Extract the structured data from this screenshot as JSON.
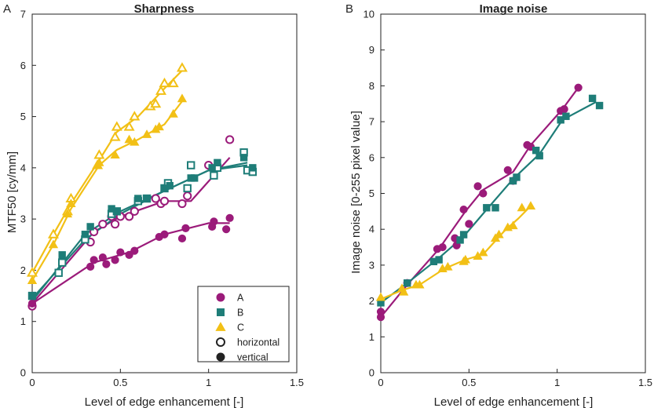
{
  "colors": {
    "A": "#9b1b7a",
    "B": "#1e7d78",
    "C": "#f2c016",
    "axis": "#222222"
  },
  "chart_data": [
    {
      "panel_letter": "A",
      "type": "scatter",
      "title": "Sharpness",
      "xlabel": "Level of edge enhancement [-]",
      "ylabel": "MTF50 [cy/mm]",
      "xlim": [
        0,
        1.5
      ],
      "ylim": [
        0,
        7
      ],
      "xticks": [
        "0",
        "0.5",
        "1",
        "1.5"
      ],
      "yticks": [
        "0",
        "1",
        "2",
        "3",
        "4",
        "5",
        "6",
        "7"
      ],
      "legend": {
        "position": "bottom-right",
        "entries": [
          {
            "label": "A",
            "marker": "circle",
            "color_key": "A",
            "filled": true
          },
          {
            "label": "B",
            "marker": "square",
            "color_key": "B",
            "filled": true
          },
          {
            "label": "C",
            "marker": "triangle",
            "color_key": "C",
            "filled": true
          },
          {
            "label": "horizontal",
            "marker": "circle",
            "color_key": "axis",
            "filled": false
          },
          {
            "label": "vertical",
            "marker": "circle",
            "color_key": "axis",
            "filled": true
          }
        ]
      },
      "series": [
        {
          "name": "A horizontal",
          "color_key": "A",
          "marker": "circle",
          "filled": false,
          "points": [
            [
              0,
              1.3
            ],
            [
              0.33,
              2.55
            ],
            [
              0.35,
              2.75
            ],
            [
              0.4,
              2.9
            ],
            [
              0.45,
              3.05
            ],
            [
              0.47,
              2.9
            ],
            [
              0.5,
              3.05
            ],
            [
              0.55,
              3.05
            ],
            [
              0.58,
              3.15
            ],
            [
              0.7,
              3.4
            ],
            [
              0.73,
              3.3
            ],
            [
              0.75,
              3.35
            ],
            [
              0.85,
              3.3
            ],
            [
              0.88,
              3.45
            ],
            [
              1.0,
              4.05
            ],
            [
              1.12,
              4.55
            ]
          ],
          "fit": [
            [
              0,
              1.35
            ],
            [
              0.35,
              2.75
            ],
            [
              0.5,
              3.05
            ],
            [
              0.75,
              3.35
            ],
            [
              0.9,
              3.35
            ],
            [
              1.12,
              4.2
            ]
          ]
        },
        {
          "name": "A vertical",
          "color_key": "A",
          "marker": "circle",
          "filled": true,
          "points": [
            [
              0,
              1.35
            ],
            [
              0.33,
              2.07
            ],
            [
              0.35,
              2.2
            ],
            [
              0.4,
              2.25
            ],
            [
              0.42,
              2.12
            ],
            [
              0.47,
              2.2
            ],
            [
              0.5,
              2.35
            ],
            [
              0.55,
              2.3
            ],
            [
              0.58,
              2.38
            ],
            [
              0.72,
              2.65
            ],
            [
              0.75,
              2.7
            ],
            [
              0.85,
              2.62
            ],
            [
              0.87,
              2.82
            ],
            [
              1.02,
              2.85
            ],
            [
              1.03,
              2.95
            ],
            [
              1.1,
              2.8
            ],
            [
              1.12,
              3.02
            ]
          ],
          "fit": [
            [
              0,
              1.35
            ],
            [
              0.35,
              2.15
            ],
            [
              0.55,
              2.35
            ],
            [
              0.75,
              2.7
            ],
            [
              1.0,
              2.92
            ],
            [
              1.12,
              2.92
            ]
          ]
        },
        {
          "name": "B horizontal",
          "color_key": "B",
          "marker": "square",
          "filled": false,
          "points": [
            [
              0,
              1.5
            ],
            [
              0.15,
              1.95
            ],
            [
              0.17,
              2.15
            ],
            [
              0.3,
              2.6
            ],
            [
              0.45,
              3.1
            ],
            [
              0.48,
              3.15
            ],
            [
              0.6,
              3.35
            ],
            [
              0.65,
              3.4
            ],
            [
              0.75,
              3.6
            ],
            [
              0.77,
              3.7
            ],
            [
              0.88,
              3.6
            ],
            [
              0.9,
              4.05
            ],
            [
              1.03,
              3.85
            ],
            [
              1.05,
              4.0
            ],
            [
              1.2,
              4.3
            ],
            [
              1.22,
              3.95
            ],
            [
              1.25,
              3.92
            ]
          ],
          "fit": [
            [
              0,
              1.45
            ],
            [
              0.3,
              2.6
            ],
            [
              0.5,
              3.1
            ],
            [
              0.75,
              3.55
            ],
            [
              1.0,
              3.95
            ],
            [
              1.22,
              4.05
            ]
          ]
        },
        {
          "name": "B vertical",
          "color_key": "B",
          "marker": "square",
          "filled": true,
          "points": [
            [
              0,
              1.5
            ],
            [
              0.17,
              2.3
            ],
            [
              0.3,
              2.7
            ],
            [
              0.33,
              2.85
            ],
            [
              0.45,
              3.2
            ],
            [
              0.48,
              3.15
            ],
            [
              0.6,
              3.4
            ],
            [
              0.65,
              3.4
            ],
            [
              0.75,
              3.6
            ],
            [
              0.78,
              3.65
            ],
            [
              0.9,
              3.8
            ],
            [
              0.92,
              3.8
            ],
            [
              1.02,
              4.0
            ],
            [
              1.05,
              4.1
            ],
            [
              1.2,
              4.2
            ],
            [
              1.25,
              4.0
            ]
          ],
          "fit": [
            [
              0,
              1.4
            ],
            [
              0.3,
              2.7
            ],
            [
              0.5,
              3.15
            ],
            [
              0.75,
              3.55
            ],
            [
              1.0,
              3.95
            ],
            [
              1.22,
              4.1
            ]
          ]
        },
        {
          "name": "C horizontal",
          "color_key": "C",
          "marker": "triangle",
          "filled": false,
          "points": [
            [
              0,
              1.95
            ],
            [
              0.12,
              2.7
            ],
            [
              0.2,
              3.15
            ],
            [
              0.22,
              3.4
            ],
            [
              0.37,
              4.05
            ],
            [
              0.38,
              4.25
            ],
            [
              0.47,
              4.6
            ],
            [
              0.48,
              4.8
            ],
            [
              0.55,
              4.8
            ],
            [
              0.58,
              5.0
            ],
            [
              0.67,
              5.2
            ],
            [
              0.7,
              5.25
            ],
            [
              0.73,
              5.5
            ],
            [
              0.75,
              5.65
            ],
            [
              0.8,
              5.65
            ],
            [
              0.85,
              5.95
            ]
          ],
          "fit": [
            [
              0,
              1.95
            ],
            [
              0.12,
              2.7
            ],
            [
              0.22,
              3.3
            ],
            [
              0.38,
              4.15
            ],
            [
              0.48,
              4.7
            ],
            [
              0.6,
              5.0
            ],
            [
              0.75,
              5.55
            ],
            [
              0.85,
              5.9
            ]
          ]
        },
        {
          "name": "C vertical",
          "color_key": "C",
          "marker": "triangle",
          "filled": true,
          "points": [
            [
              0,
              1.8
            ],
            [
              0.12,
              2.5
            ],
            [
              0.2,
              3.1
            ],
            [
              0.22,
              3.3
            ],
            [
              0.37,
              4.05
            ],
            [
              0.38,
              4.1
            ],
            [
              0.47,
              4.25
            ],
            [
              0.55,
              4.55
            ],
            [
              0.58,
              4.5
            ],
            [
              0.65,
              4.65
            ],
            [
              0.7,
              4.75
            ],
            [
              0.72,
              4.8
            ],
            [
              0.8,
              5.05
            ],
            [
              0.85,
              5.35
            ]
          ],
          "fit": [
            [
              0,
              1.8
            ],
            [
              0.12,
              2.5
            ],
            [
              0.22,
              3.2
            ],
            [
              0.38,
              4.05
            ],
            [
              0.48,
              4.35
            ],
            [
              0.6,
              4.55
            ],
            [
              0.75,
              4.85
            ],
            [
              0.85,
              5.3
            ]
          ]
        }
      ]
    },
    {
      "panel_letter": "B",
      "type": "scatter",
      "title": "Image noise",
      "xlabel": "Level of edge enhancement [-]",
      "ylabel": "Image noise [0-255 pixel value]",
      "xlim": [
        0,
        1.5
      ],
      "ylim": [
        0,
        10
      ],
      "xticks": [
        "0",
        "0.5",
        "1",
        "1.5"
      ],
      "yticks": [
        "0",
        "1",
        "2",
        "3",
        "4",
        "5",
        "6",
        "7",
        "8",
        "9",
        "10"
      ],
      "series": [
        {
          "name": "A",
          "color_key": "A",
          "marker": "circle",
          "filled": true,
          "points": [
            [
              0,
              1.7
            ],
            [
              0,
              1.55
            ],
            [
              0.15,
              2.5
            ],
            [
              0.32,
              3.45
            ],
            [
              0.35,
              3.5
            ],
            [
              0.42,
              3.75
            ],
            [
              0.43,
              3.55
            ],
            [
              0.47,
              4.55
            ],
            [
              0.5,
              4.15
            ],
            [
              0.55,
              5.2
            ],
            [
              0.58,
              5.0
            ],
            [
              0.72,
              5.65
            ],
            [
              0.75,
              5.35
            ],
            [
              0.83,
              6.35
            ],
            [
              0.85,
              6.3
            ],
            [
              1.02,
              7.3
            ],
            [
              1.04,
              7.35
            ],
            [
              1.12,
              7.95
            ]
          ],
          "fit": [
            [
              0,
              1.55
            ],
            [
              0.15,
              2.45
            ],
            [
              0.33,
              3.45
            ],
            [
              0.48,
              4.5
            ],
            [
              0.58,
              5.1
            ],
            [
              0.75,
              5.6
            ],
            [
              0.85,
              6.35
            ],
            [
              1.03,
              7.35
            ],
            [
              1.12,
              7.95
            ]
          ]
        },
        {
          "name": "B",
          "color_key": "B",
          "marker": "square",
          "filled": true,
          "points": [
            [
              0,
              1.95
            ],
            [
              0.15,
              2.5
            ],
            [
              0.3,
              3.1
            ],
            [
              0.33,
              3.15
            ],
            [
              0.45,
              3.7
            ],
            [
              0.47,
              3.85
            ],
            [
              0.6,
              4.6
            ],
            [
              0.65,
              4.6
            ],
            [
              0.75,
              5.35
            ],
            [
              0.77,
              5.45
            ],
            [
              0.88,
              6.2
            ],
            [
              0.9,
              6.05
            ],
            [
              1.02,
              7.05
            ],
            [
              1.05,
              7.15
            ],
            [
              1.2,
              7.65
            ],
            [
              1.24,
              7.45
            ]
          ],
          "fit": [
            [
              0,
              1.95
            ],
            [
              0.15,
              2.5
            ],
            [
              0.33,
              3.2
            ],
            [
              0.47,
              3.8
            ],
            [
              0.6,
              4.55
            ],
            [
              0.75,
              5.4
            ],
            [
              0.9,
              6.1
            ],
            [
              1.03,
              7.05
            ],
            [
              1.22,
              7.55
            ]
          ]
        },
        {
          "name": "C",
          "color_key": "C",
          "marker": "triangle",
          "filled": true,
          "points": [
            [
              0,
              2.1
            ],
            [
              0.12,
              2.35
            ],
            [
              0.13,
              2.25
            ],
            [
              0.2,
              2.45
            ],
            [
              0.22,
              2.45
            ],
            [
              0.35,
              2.9
            ],
            [
              0.38,
              2.95
            ],
            [
              0.47,
              3.1
            ],
            [
              0.48,
              3.15
            ],
            [
              0.55,
              3.25
            ],
            [
              0.58,
              3.35
            ],
            [
              0.65,
              3.75
            ],
            [
              0.67,
              3.85
            ],
            [
              0.72,
              4.05
            ],
            [
              0.75,
              4.1
            ],
            [
              0.8,
              4.6
            ],
            [
              0.85,
              4.65
            ]
          ],
          "fit": [
            [
              0,
              2.05
            ],
            [
              0.12,
              2.3
            ],
            [
              0.22,
              2.45
            ],
            [
              0.36,
              2.9
            ],
            [
              0.48,
              3.15
            ],
            [
              0.58,
              3.3
            ],
            [
              0.7,
              3.95
            ],
            [
              0.78,
              4.3
            ],
            [
              0.85,
              4.65
            ]
          ]
        }
      ]
    }
  ]
}
